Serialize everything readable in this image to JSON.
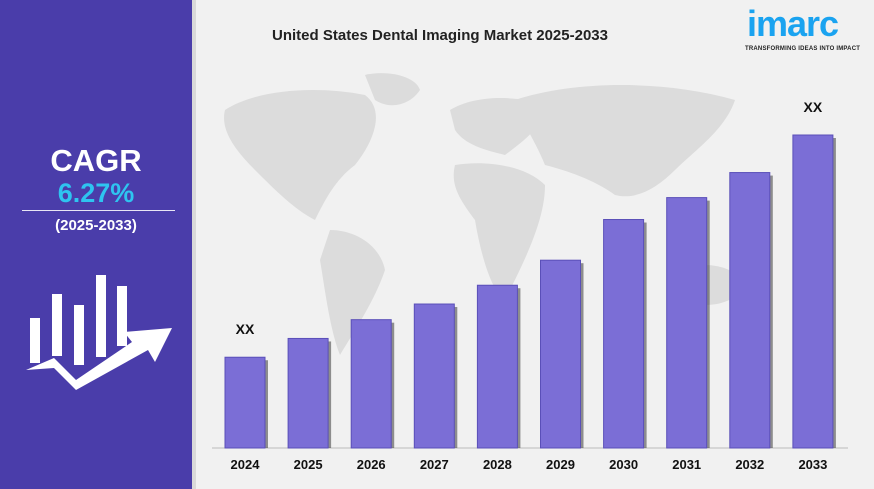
{
  "sidebar": {
    "cagr_label": "CAGR",
    "cagr_value": "6.27%",
    "period": "(2025-2033)",
    "icon": "growth-bar-chart-arrow-icon"
  },
  "logo": {
    "text": "imarc",
    "tagline": "TRANSFORMING IDEAS INTO IMPACT"
  },
  "colors": {
    "sidebar": "#4a3daa",
    "cagr_value": "#2ec4f0",
    "bar": "#7b6ed6",
    "logo": "#1aa3f0"
  },
  "chart_data": {
    "type": "bar",
    "title": "United States Dental Imaging Market 2025-2033",
    "categories": [
      "2024",
      "2025",
      "2026",
      "2027",
      "2028",
      "2029",
      "2030",
      "2031",
      "2032",
      "2033"
    ],
    "values": [
      29,
      35,
      41,
      46,
      52,
      60,
      73,
      80,
      88,
      100
    ],
    "data_labels": {
      "2024": "XX",
      "2033": "XX"
    },
    "xlabel": "",
    "ylabel": "",
    "ylim": [
      0,
      100
    ],
    "grid": false,
    "legend": "none",
    "background": "world-map"
  }
}
